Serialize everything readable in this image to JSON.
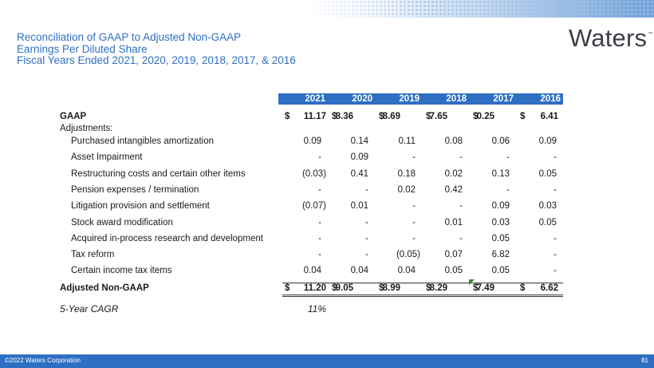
{
  "title": {
    "line1": "Reconciliation of GAAP to Adjusted Non-GAAP",
    "line2": "Earnings Per Diluted Share",
    "line3": "Fiscal Years Ended 2021, 2020, 2019, 2018, 2017, & 2016"
  },
  "brand": {
    "name": "Waters",
    "mark": "™"
  },
  "years": [
    "2021",
    "2020",
    "2019",
    "2018",
    "2017",
    "2016"
  ],
  "gaap": {
    "label": "GAAP",
    "currency": "$",
    "values": [
      "11.17",
      "8.36",
      "8.69",
      "7.65",
      "0.25",
      "6.41"
    ]
  },
  "adjustments_label": "Adjustments:",
  "adjustments": [
    {
      "label": "Purchased intangibles amortization",
      "values": [
        "0.09",
        "0.14",
        "0.11",
        "0.08",
        "0.06",
        "0.09"
      ]
    },
    {
      "label": "Asset Impairment",
      "values": [
        "-",
        "0.09",
        "-",
        "-",
        "-",
        "-"
      ]
    },
    {
      "label": "Restructuring costs and certain other items",
      "values": [
        "(0.03)",
        "0.41",
        "0.18",
        "0.02",
        "0.13",
        "0.05"
      ]
    },
    {
      "label": "Pension expenses / termination",
      "values": [
        "-",
        "-",
        "0.02",
        "0.42",
        "-",
        "-"
      ]
    },
    {
      "label": "Litigation provision and settlement",
      "values": [
        "(0.07)",
        "0.01",
        "-",
        "-",
        "0.09",
        "0.03"
      ]
    },
    {
      "label": "Stock award modification",
      "values": [
        "-",
        "-",
        "-",
        "0.01",
        "0.03",
        "0.05"
      ]
    },
    {
      "label": "Acquired in-process research and development",
      "values": [
        "-",
        "-",
        "-",
        "-",
        "0.05",
        "-"
      ]
    },
    {
      "label": "Tax reform",
      "values": [
        "-",
        "-",
        "(0.05)",
        "0.07",
        "6.82",
        "-"
      ]
    },
    {
      "label": "Certain income tax items",
      "values": [
        "0.04",
        "0.04",
        "0.04",
        "0.05",
        "0.05",
        "-"
      ]
    }
  ],
  "adjusted": {
    "label": "Adjusted Non-GAAP",
    "currency": "$",
    "values": [
      "11.20",
      "9.05",
      "8.99",
      "8.29",
      "7.49",
      "6.62"
    ]
  },
  "cagr": {
    "label": "5-Year CAGR",
    "value": "11%"
  },
  "footer": {
    "copyright": "©2022 Waters Corporation",
    "page_number": "81"
  },
  "colors": {
    "accent": "#2e6fc4",
    "brand_text": "#3b3f46",
    "error_mark": "#2f8a3a"
  }
}
